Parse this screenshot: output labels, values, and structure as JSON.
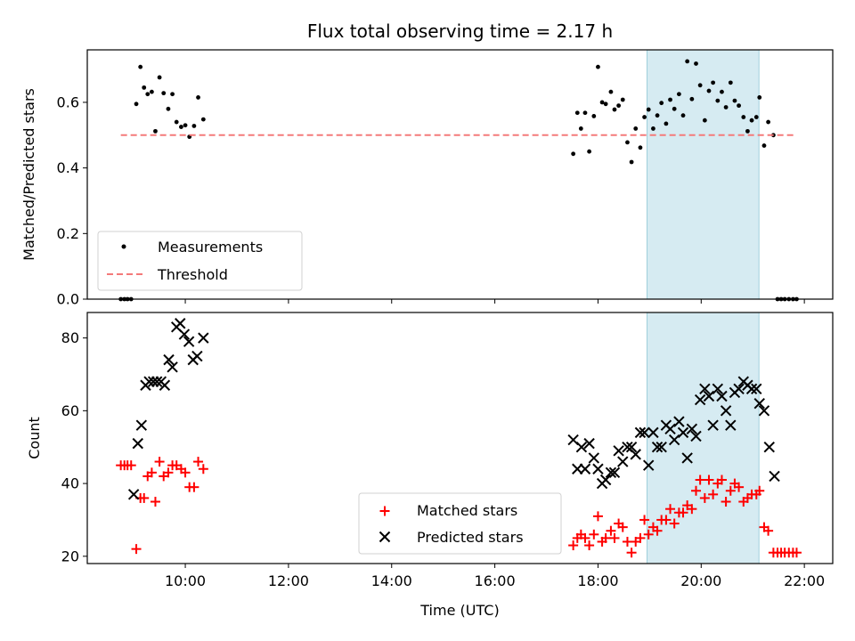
{
  "chart_data": [
    {
      "type": "scatter",
      "title": "Flux total observing time = 2.17 h",
      "xlabel": "",
      "ylabel": "Matched/Predicted stars",
      "xlim": [
        8.1,
        22.55
      ],
      "ylim": [
        0,
        0.76
      ],
      "yticks": [
        0.0,
        0.2,
        0.4,
        0.6
      ],
      "ytick_labels": [
        "0.0",
        "0.2",
        "0.4",
        "0.6"
      ],
      "highlight_span": [
        18.95,
        21.12
      ],
      "legend": {
        "placement": "lower-left",
        "entries": [
          "Measurements",
          "Threshold"
        ]
      },
      "threshold": {
        "name": "Threshold",
        "value": 0.5,
        "x_range": [
          8.75,
          21.85
        ],
        "color": "#f47a7a"
      },
      "series": [
        {
          "name": "Measurements",
          "color": "#000000",
          "points": [
            [
              8.75,
              0.0
            ],
            [
              8.82,
              0.0
            ],
            [
              8.88,
              0.0
            ],
            [
              8.95,
              0.0
            ],
            [
              9.05,
              0.595
            ],
            [
              9.13,
              0.708
            ],
            [
              9.2,
              0.645
            ],
            [
              9.27,
              0.625
            ],
            [
              9.35,
              0.632
            ],
            [
              9.42,
              0.512
            ],
            [
              9.5,
              0.676
            ],
            [
              9.58,
              0.628
            ],
            [
              9.67,
              0.58
            ],
            [
              9.75,
              0.625
            ],
            [
              9.83,
              0.54
            ],
            [
              9.92,
              0.525
            ],
            [
              10.0,
              0.53
            ],
            [
              10.08,
              0.495
            ],
            [
              10.17,
              0.528
            ],
            [
              10.25,
              0.615
            ],
            [
              10.35,
              0.548
            ],
            [
              17.52,
              0.443
            ],
            [
              17.6,
              0.568
            ],
            [
              17.67,
              0.52
            ],
            [
              17.75,
              0.568
            ],
            [
              17.83,
              0.45
            ],
            [
              17.92,
              0.558
            ],
            [
              18.0,
              0.708
            ],
            [
              18.08,
              0.6
            ],
            [
              18.15,
              0.595
            ],
            [
              18.25,
              0.632
            ],
            [
              18.32,
              0.578
            ],
            [
              18.4,
              0.59
            ],
            [
              18.48,
              0.608
            ],
            [
              18.57,
              0.478
            ],
            [
              18.65,
              0.418
            ],
            [
              18.73,
              0.52
            ],
            [
              18.82,
              0.462
            ],
            [
              18.9,
              0.555
            ],
            [
              18.98,
              0.578
            ],
            [
              19.07,
              0.52
            ],
            [
              19.15,
              0.56
            ],
            [
              19.23,
              0.598
            ],
            [
              19.32,
              0.535
            ],
            [
              19.4,
              0.608
            ],
            [
              19.48,
              0.58
            ],
            [
              19.57,
              0.625
            ],
            [
              19.65,
              0.56
            ],
            [
              19.73,
              0.725
            ],
            [
              19.82,
              0.61
            ],
            [
              19.9,
              0.718
            ],
            [
              19.98,
              0.652
            ],
            [
              20.07,
              0.545
            ],
            [
              20.15,
              0.635
            ],
            [
              20.23,
              0.66
            ],
            [
              20.32,
              0.605
            ],
            [
              20.4,
              0.632
            ],
            [
              20.48,
              0.585
            ],
            [
              20.57,
              0.66
            ],
            [
              20.65,
              0.605
            ],
            [
              20.73,
              0.59
            ],
            [
              20.82,
              0.555
            ],
            [
              20.9,
              0.512
            ],
            [
              20.98,
              0.545
            ],
            [
              21.07,
              0.555
            ],
            [
              21.13,
              0.615
            ],
            [
              21.22,
              0.468
            ],
            [
              21.3,
              0.54
            ],
            [
              21.4,
              0.5
            ],
            [
              21.48,
              0.0
            ],
            [
              21.55,
              0.0
            ],
            [
              21.62,
              0.0
            ],
            [
              21.7,
              0.0
            ],
            [
              21.78,
              0.0
            ],
            [
              21.85,
              0.0
            ]
          ]
        }
      ]
    },
    {
      "type": "scatter",
      "title": "",
      "xlabel": "Time (UTC)",
      "ylabel": "Count",
      "xlim": [
        8.1,
        22.55
      ],
      "ylim": [
        18,
        87
      ],
      "xticks": [
        10,
        12,
        14,
        16,
        18,
        20,
        22
      ],
      "xtick_labels": [
        "10:00",
        "12:00",
        "14:00",
        "16:00",
        "18:00",
        "20:00",
        "22:00"
      ],
      "yticks": [
        20,
        40,
        60,
        80
      ],
      "ytick_labels": [
        "20",
        "40",
        "60",
        "80"
      ],
      "highlight_span": [
        18.95,
        21.12
      ],
      "legend": {
        "placement": "lower-center",
        "entries": [
          "Matched stars",
          "Predicted stars"
        ]
      },
      "series": [
        {
          "name": "Matched stars",
          "marker": "plus",
          "color": "#ff0000",
          "points": [
            [
              8.75,
              45
            ],
            [
              8.82,
              45
            ],
            [
              8.88,
              45
            ],
            [
              8.95,
              45
            ],
            [
              9.05,
              22
            ],
            [
              9.13,
              36
            ],
            [
              9.2,
              36
            ],
            [
              9.27,
              42
            ],
            [
              9.35,
              43
            ],
            [
              9.42,
              35
            ],
            [
              9.5,
              46
            ],
            [
              9.58,
              42
            ],
            [
              9.67,
              43
            ],
            [
              9.75,
              45
            ],
            [
              9.83,
              45
            ],
            [
              9.92,
              44
            ],
            [
              10.0,
              43
            ],
            [
              10.08,
              39
            ],
            [
              10.17,
              39
            ],
            [
              10.25,
              46
            ],
            [
              10.35,
              44
            ],
            [
              17.52,
              23
            ],
            [
              17.6,
              25
            ],
            [
              17.67,
              26
            ],
            [
              17.75,
              25
            ],
            [
              17.83,
              23
            ],
            [
              17.92,
              26
            ],
            [
              18.0,
              31
            ],
            [
              18.08,
              24
            ],
            [
              18.15,
              25
            ],
            [
              18.25,
              27
            ],
            [
              18.32,
              25
            ],
            [
              18.4,
              29
            ],
            [
              18.48,
              28
            ],
            [
              18.57,
              24
            ],
            [
              18.65,
              21
            ],
            [
              18.73,
              24
            ],
            [
              18.82,
              25
            ],
            [
              18.9,
              30
            ],
            [
              18.98,
              26
            ],
            [
              19.07,
              28
            ],
            [
              19.15,
              27
            ],
            [
              19.23,
              30
            ],
            [
              19.32,
              30
            ],
            [
              19.4,
              33
            ],
            [
              19.48,
              29
            ],
            [
              19.57,
              32
            ],
            [
              19.65,
              32
            ],
            [
              19.73,
              34
            ],
            [
              19.82,
              33
            ],
            [
              19.9,
              38
            ],
            [
              19.98,
              41
            ],
            [
              20.07,
              36
            ],
            [
              20.15,
              41
            ],
            [
              20.23,
              37
            ],
            [
              20.32,
              40
            ],
            [
              20.4,
              41
            ],
            [
              20.48,
              35
            ],
            [
              20.57,
              38
            ],
            [
              20.65,
              40
            ],
            [
              20.73,
              39
            ],
            [
              20.82,
              35
            ],
            [
              20.9,
              36
            ],
            [
              20.98,
              37
            ],
            [
              21.07,
              37
            ],
            [
              21.13,
              38
            ],
            [
              21.22,
              28
            ],
            [
              21.3,
              27
            ],
            [
              21.4,
              21
            ],
            [
              21.48,
              21
            ],
            [
              21.55,
              21
            ],
            [
              21.62,
              21
            ],
            [
              21.7,
              21
            ],
            [
              21.78,
              21
            ],
            [
              21.85,
              21
            ]
          ]
        },
        {
          "name": "Predicted stars",
          "marker": "x",
          "color": "#000000",
          "points": [
            [
              9.0,
              37
            ],
            [
              9.08,
              51
            ],
            [
              9.15,
              56
            ],
            [
              9.23,
              67
            ],
            [
              9.3,
              68
            ],
            [
              9.38,
              68
            ],
            [
              9.45,
              68
            ],
            [
              9.53,
              68
            ],
            [
              9.6,
              67
            ],
            [
              9.68,
              74
            ],
            [
              9.75,
              72
            ],
            [
              9.83,
              83
            ],
            [
              9.9,
              84
            ],
            [
              9.98,
              81
            ],
            [
              10.07,
              79
            ],
            [
              10.15,
              74
            ],
            [
              10.23,
              75
            ],
            [
              10.35,
              80
            ],
            [
              17.52,
              52
            ],
            [
              17.6,
              44
            ],
            [
              17.68,
              50
            ],
            [
              17.75,
              44
            ],
            [
              17.83,
              51
            ],
            [
              17.92,
              47
            ],
            [
              18.0,
              44
            ],
            [
              18.08,
              40
            ],
            [
              18.15,
              41
            ],
            [
              18.25,
              43
            ],
            [
              18.32,
              43
            ],
            [
              18.4,
              49
            ],
            [
              18.48,
              46
            ],
            [
              18.57,
              50
            ],
            [
              18.65,
              50
            ],
            [
              18.73,
              48
            ],
            [
              18.82,
              54
            ],
            [
              18.9,
              54
            ],
            [
              18.98,
              45
            ],
            [
              19.07,
              54
            ],
            [
              19.15,
              50
            ],
            [
              19.23,
              50
            ],
            [
              19.32,
              56
            ],
            [
              19.4,
              55
            ],
            [
              19.48,
              52
            ],
            [
              19.57,
              57
            ],
            [
              19.65,
              54
            ],
            [
              19.73,
              47
            ],
            [
              19.82,
              55
            ],
            [
              19.9,
              53
            ],
            [
              19.98,
              63
            ],
            [
              20.07,
              66
            ],
            [
              20.15,
              64
            ],
            [
              20.23,
              56
            ],
            [
              20.32,
              66
            ],
            [
              20.4,
              64
            ],
            [
              20.48,
              60
            ],
            [
              20.57,
              56
            ],
            [
              20.65,
              65
            ],
            [
              20.73,
              66
            ],
            [
              20.82,
              68
            ],
            [
              20.9,
              67
            ],
            [
              20.98,
              66
            ],
            [
              21.07,
              66
            ],
            [
              21.13,
              62
            ],
            [
              21.22,
              60
            ],
            [
              21.32,
              50
            ],
            [
              21.42,
              42
            ]
          ]
        }
      ]
    }
  ]
}
